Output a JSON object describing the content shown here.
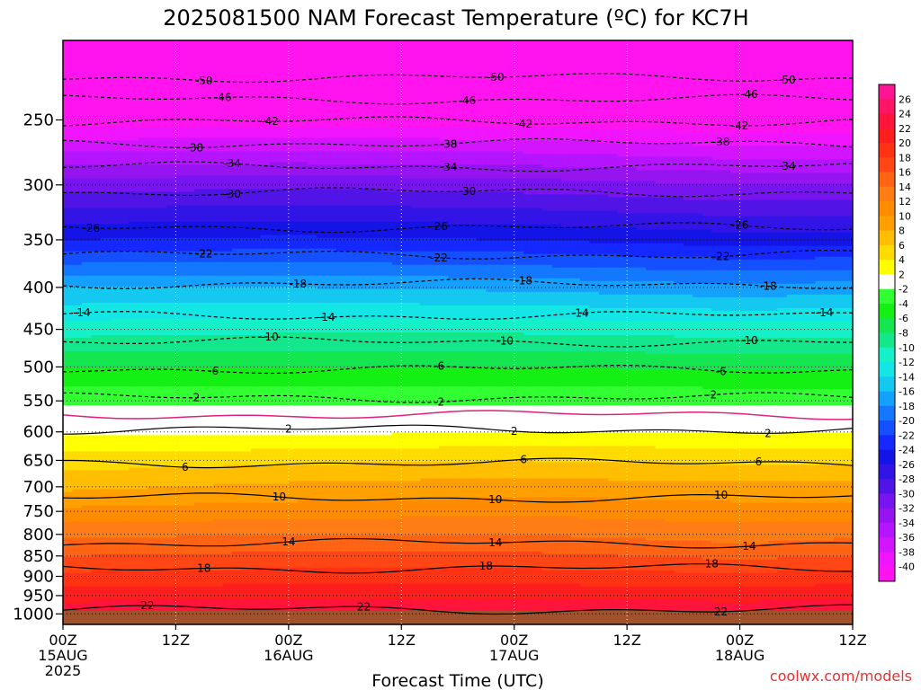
{
  "title": "2025081500 NAM Forecast Temperature (ºC) for KC7H",
  "credit": "coolwx.com/models",
  "chart_data": {
    "type": "heatmap",
    "xlabel": "Forecast Time (UTC)",
    "ylabel": "",
    "x_ticks": [
      {
        "hours": 0,
        "lines": [
          "00Z",
          "15AUG",
          "2025"
        ]
      },
      {
        "hours": 12,
        "lines": [
          "12Z"
        ]
      },
      {
        "hours": 24,
        "lines": [
          "00Z",
          "16AUG"
        ]
      },
      {
        "hours": 36,
        "lines": [
          "12Z"
        ]
      },
      {
        "hours": 48,
        "lines": [
          "00Z",
          "17AUG"
        ]
      },
      {
        "hours": 60,
        "lines": [
          "12Z"
        ]
      },
      {
        "hours": 72,
        "lines": [
          "00Z",
          "18AUG"
        ]
      },
      {
        "hours": 84,
        "lines": [
          "12Z"
        ]
      }
    ],
    "xlim": [
      0,
      84
    ],
    "y_ticks": [
      250,
      300,
      350,
      400,
      450,
      500,
      550,
      600,
      650,
      700,
      750,
      800,
      850,
      900,
      950,
      1000
    ],
    "ylim": [
      1030,
      200
    ],
    "y_scale": "log",
    "colorbar": {
      "labels": [
        "26",
        "24",
        "22",
        "20",
        "18",
        "16",
        "14",
        "12",
        "10",
        "8",
        "6",
        "4",
        "2",
        "-2",
        "-4",
        "-6",
        "-8",
        "-10",
        "-12",
        "-14",
        "-16",
        "-18",
        "-20",
        "-22",
        "-24",
        "-26",
        "-28",
        "-30",
        "-32",
        "-34",
        "-36",
        "-38",
        "-40"
      ],
      "levels": [
        28,
        26,
        24,
        22,
        20,
        18,
        16,
        14,
        12,
        10,
        8,
        6,
        4,
        2,
        -2,
        -4,
        -6,
        -8,
        -10,
        -12,
        -14,
        -16,
        -18,
        -20,
        -22,
        -24,
        -26,
        -28,
        -30,
        -32,
        -34,
        -36,
        -38,
        -40,
        -42
      ],
      "colors": [
        "#ff1493",
        "#ff1466",
        "#ff143c",
        "#ff1e1e",
        "#ff3214",
        "#ff4614",
        "#ff6414",
        "#ff7d14",
        "#ff8c00",
        "#ffa000",
        "#ffbe00",
        "#ffdc00",
        "#ffff00",
        "#ffffff",
        "#32ff32",
        "#14f014",
        "#14e650",
        "#14e68c",
        "#14f0c8",
        "#14e6e6",
        "#14c8f0",
        "#14a0ff",
        "#1478ff",
        "#1450ff",
        "#1428ff",
        "#1414e6",
        "#3214e6",
        "#5014e6",
        "#7814f0",
        "#9614f0",
        "#b414ff",
        "#d214ff",
        "#f014ff",
        "#ff14f0"
      ]
    },
    "profiles": [
      {
        "hours": 0,
        "points": [
          [
            1000,
            24
          ],
          [
            950,
            21
          ],
          [
            900,
            18.5
          ],
          [
            850,
            16
          ],
          [
            800,
            13.5
          ],
          [
            750,
            10.5
          ],
          [
            700,
            7.5
          ],
          [
            650,
            5
          ],
          [
            600,
            1.5
          ],
          [
            550,
            -2.5
          ],
          [
            500,
            -6
          ],
          [
            450,
            -11
          ],
          [
            400,
            -16
          ],
          [
            350,
            -24
          ],
          [
            300,
            -31
          ],
          [
            250,
            -41
          ],
          [
            200,
            -52
          ]
        ]
      },
      {
        "hours": 24,
        "points": [
          [
            1000,
            24
          ],
          [
            950,
            21.5
          ],
          [
            900,
            19
          ],
          [
            850,
            16.5
          ],
          [
            800,
            14
          ],
          [
            750,
            11
          ],
          [
            700,
            8.5
          ],
          [
            650,
            5.5
          ],
          [
            600,
            1.5
          ],
          [
            550,
            -2.5
          ],
          [
            500,
            -6
          ],
          [
            450,
            -10.5
          ],
          [
            400,
            -16
          ],
          [
            350,
            -23.5
          ],
          [
            300,
            -30.5
          ],
          [
            250,
            -41
          ],
          [
            200,
            -52
          ]
        ]
      },
      {
        "hours": 48,
        "points": [
          [
            1000,
            24
          ],
          [
            950,
            21.5
          ],
          [
            900,
            19
          ],
          [
            850,
            16.5
          ],
          [
            800,
            14
          ],
          [
            750,
            11.5
          ],
          [
            700,
            9
          ],
          [
            650,
            6
          ],
          [
            600,
            2
          ],
          [
            550,
            -2.5
          ],
          [
            500,
            -6
          ],
          [
            450,
            -10.5
          ],
          [
            400,
            -16.5
          ],
          [
            350,
            -24
          ],
          [
            300,
            -31
          ],
          [
            250,
            -41
          ],
          [
            200,
            -52
          ]
        ]
      },
      {
        "hours": 72,
        "points": [
          [
            1000,
            24
          ],
          [
            950,
            21
          ],
          [
            900,
            18.5
          ],
          [
            850,
            15.5
          ],
          [
            800,
            13
          ],
          [
            750,
            11
          ],
          [
            700,
            8.5
          ],
          [
            650,
            5.5
          ],
          [
            600,
            2
          ],
          [
            550,
            -2.5
          ],
          [
            500,
            -6.5
          ],
          [
            450,
            -11
          ],
          [
            400,
            -17.5
          ],
          [
            350,
            -25
          ],
          [
            300,
            -32
          ],
          [
            250,
            -42
          ],
          [
            200,
            -52.5
          ]
        ]
      },
      {
        "hours": 84,
        "points": [
          [
            1000,
            24
          ],
          [
            950,
            21.5
          ],
          [
            900,
            19
          ],
          [
            850,
            16
          ],
          [
            800,
            13.5
          ],
          [
            750,
            11
          ],
          [
            700,
            8.5
          ],
          [
            650,
            5.5
          ],
          [
            600,
            2
          ],
          [
            550,
            -2.5
          ],
          [
            500,
            -6.5
          ],
          [
            450,
            -11
          ],
          [
            400,
            -17
          ],
          [
            350,
            -25
          ],
          [
            300,
            -32
          ],
          [
            250,
            -42
          ],
          [
            200,
            -52.5
          ]
        ]
      }
    ],
    "contour_lines": [
      {
        "level": -50,
        "dashed": true,
        "pressure": 222,
        "labels": [
          {
            "hours": 15,
            "text": "-50"
          },
          {
            "hours": 46,
            "text": "-50"
          },
          {
            "hours": 77,
            "text": "-50"
          }
        ]
      },
      {
        "level": -46,
        "dashed": true,
        "pressure": 236,
        "labels": [
          {
            "hours": 17,
            "text": "-46"
          },
          {
            "hours": 43,
            "text": "-46"
          },
          {
            "hours": 73,
            "text": "-46"
          }
        ]
      },
      {
        "level": -42,
        "dashed": true,
        "pressure": 251,
        "labels": [
          {
            "hours": 22,
            "text": "-42"
          },
          {
            "hours": 49,
            "text": "-42"
          },
          {
            "hours": 72,
            "text": "-42"
          }
        ]
      },
      {
        "level": -38,
        "dashed": true,
        "pressure": 267,
        "labels": [
          {
            "hours": 14,
            "text": "-38"
          },
          {
            "hours": 41,
            "text": "-38"
          },
          {
            "hours": 70,
            "text": "-38"
          }
        ]
      },
      {
        "level": -34,
        "dashed": true,
        "pressure": 285,
        "labels": [
          {
            "hours": 18,
            "text": "-34"
          },
          {
            "hours": 41,
            "text": "-34"
          },
          {
            "hours": 77,
            "text": "-34"
          }
        ]
      },
      {
        "level": -30,
        "dashed": true,
        "pressure": 306,
        "labels": [
          {
            "hours": 18,
            "text": "-30"
          },
          {
            "hours": 43,
            "text": "-30"
          }
        ]
      },
      {
        "level": -26,
        "dashed": true,
        "pressure": 338,
        "labels": [
          {
            "hours": 3,
            "text": "-26"
          },
          {
            "hours": 40,
            "text": "-26"
          },
          {
            "hours": 72,
            "text": "-26"
          }
        ]
      },
      {
        "level": -22,
        "dashed": true,
        "pressure": 365,
        "labels": [
          {
            "hours": 15,
            "text": "-22"
          },
          {
            "hours": 40,
            "text": "-22"
          },
          {
            "hours": 70,
            "text": "-22"
          }
        ]
      },
      {
        "level": -18,
        "dashed": true,
        "pressure": 396,
        "labels": [
          {
            "hours": 25,
            "text": "-18"
          },
          {
            "hours": 49,
            "text": "-18"
          },
          {
            "hours": 75,
            "text": "-18"
          }
        ]
      },
      {
        "level": -14,
        "dashed": true,
        "pressure": 433,
        "labels": [
          {
            "hours": 2,
            "text": "-14"
          },
          {
            "hours": 28,
            "text": "-14"
          },
          {
            "hours": 55,
            "text": "-14"
          },
          {
            "hours": 81,
            "text": "-14"
          }
        ]
      },
      {
        "level": -10,
        "dashed": true,
        "pressure": 466,
        "labels": [
          {
            "hours": 22,
            "text": "-10"
          },
          {
            "hours": 47,
            "text": "-10"
          },
          {
            "hours": 73,
            "text": "-10"
          }
        ]
      },
      {
        "level": -6,
        "dashed": true,
        "pressure": 503,
        "labels": [
          {
            "hours": 16,
            "text": "-6"
          },
          {
            "hours": 40,
            "text": "-6"
          },
          {
            "hours": 70,
            "text": "-6"
          }
        ]
      },
      {
        "level": -2,
        "dashed": true,
        "pressure": 545,
        "labels": [
          {
            "hours": 14,
            "text": "-2"
          },
          {
            "hours": 40,
            "text": "-2"
          },
          {
            "hours": 69,
            "text": "-2"
          }
        ]
      },
      {
        "level": 0,
        "dashed": false,
        "pressure": 572,
        "magenta": true,
        "labels": []
      },
      {
        "level": 2,
        "dashed": false,
        "pressure": 596,
        "labels": [
          {
            "hours": 24,
            "text": "2"
          },
          {
            "hours": 48,
            "text": "2"
          },
          {
            "hours": 75,
            "text": "2"
          }
        ]
      },
      {
        "level": 6,
        "dashed": false,
        "pressure": 655,
        "labels": [
          {
            "hours": 13,
            "text": "6"
          },
          {
            "hours": 49,
            "text": "6"
          },
          {
            "hours": 74,
            "text": "6"
          }
        ]
      },
      {
        "level": 10,
        "dashed": false,
        "pressure": 722,
        "labels": [
          {
            "hours": 23,
            "text": "10"
          },
          {
            "hours": 46,
            "text": "10"
          },
          {
            "hours": 70,
            "text": "10"
          }
        ]
      },
      {
        "level": 14,
        "dashed": false,
        "pressure": 820,
        "labels": [
          {
            "hours": 24,
            "text": "14"
          },
          {
            "hours": 46,
            "text": "14"
          },
          {
            "hours": 73,
            "text": "14"
          }
        ]
      },
      {
        "level": 18,
        "dashed": false,
        "pressure": 880,
        "labels": [
          {
            "hours": 15,
            "text": "18"
          },
          {
            "hours": 45,
            "text": "18"
          },
          {
            "hours": 69,
            "text": "18"
          }
        ]
      },
      {
        "level": 22,
        "dashed": false,
        "pressure": 988,
        "labels": [
          {
            "hours": 9,
            "text": "22"
          },
          {
            "hours": 32,
            "text": "22"
          },
          {
            "hours": 70,
            "text": "22"
          }
        ]
      }
    ],
    "grid": true,
    "legend": "colorbar right"
  }
}
